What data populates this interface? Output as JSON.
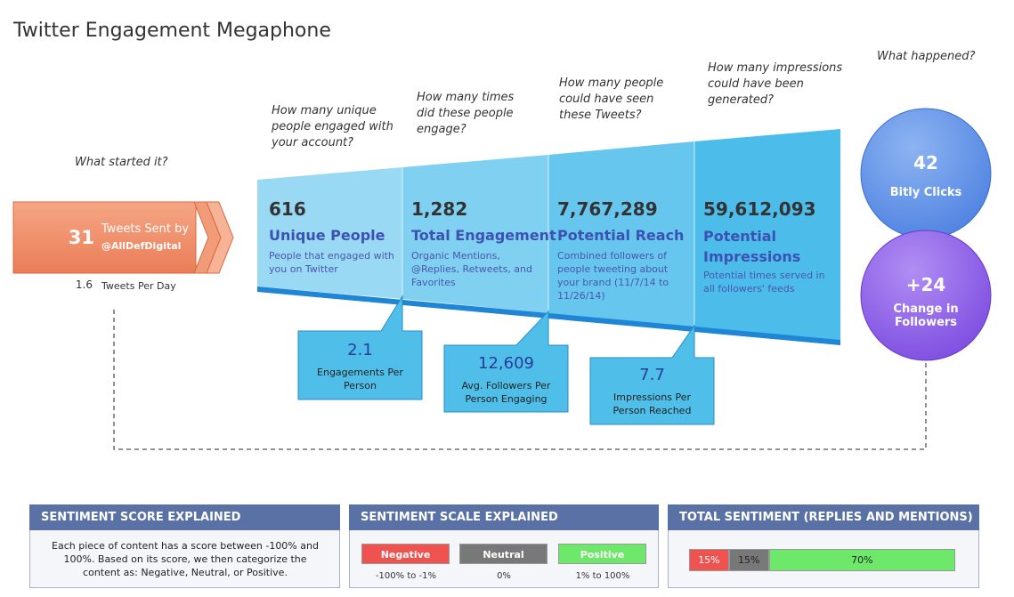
{
  "title": "Twitter Engagement Megaphone",
  "start": {
    "question": "What started it?",
    "count": "31",
    "label": "Tweets Sent by",
    "handle": "@AllDefDigital",
    "per_day": "1.6",
    "per_day_label": "Tweets Per Day"
  },
  "funnel": [
    {
      "question": "How many unique people engaged with your account?",
      "value": "616",
      "name": "Unique People",
      "description": "People that engaged with you on Twitter"
    },
    {
      "question": "How many times did these people engage?",
      "value": "1,282",
      "name": "Total Engagement",
      "description": "Organic Mentions, @Replies, Retweets, and Favorites"
    },
    {
      "question": "How many people could have seen these Tweets?",
      "value": "7,767,289",
      "name": "Potential Reach",
      "description": "Combined followers of people tweeting about your brand (11/7/14 to 11/26/14)"
    },
    {
      "question": "How many impressions could have been generated?",
      "value": "59,612,093",
      "name": "Potential Impressions",
      "description": "Potential times served in all followers' feeds"
    }
  ],
  "callouts": [
    {
      "value": "2.1",
      "label": "Engagements Per Person"
    },
    {
      "value": "12,609",
      "label": "Avg. Followers Per Person Engaging"
    },
    {
      "value": "7.7",
      "label": "Impressions Per Person Reached"
    }
  ],
  "outcome": {
    "question": "What happened?",
    "items": [
      {
        "value": "42",
        "label": "Bitly Clicks"
      },
      {
        "value": "+24",
        "label": "Change in Followers"
      }
    ]
  },
  "panels": {
    "score": {
      "title": "SENTIMENT SCORE EXPLAINED",
      "text": "Each piece of content has a score between -100% and 100%. Based on its score, we then categorize the content as: Negative, Neutral, or Positive."
    },
    "scale": {
      "title": "SENTIMENT SCALE EXPLAINED",
      "items": [
        {
          "name": "Negative",
          "range": "-100% to -1%"
        },
        {
          "name": "Neutral",
          "range": "0%"
        },
        {
          "name": "Positive",
          "range": "1% to 100%"
        }
      ]
    },
    "total": {
      "title": "TOTAL SENTIMENT (REPLIES AND MENTIONS)",
      "segments": [
        {
          "value": 15,
          "label": "15%"
        },
        {
          "value": 15,
          "label": "15%"
        },
        {
          "value": 70,
          "label": "70%"
        }
      ]
    }
  }
}
